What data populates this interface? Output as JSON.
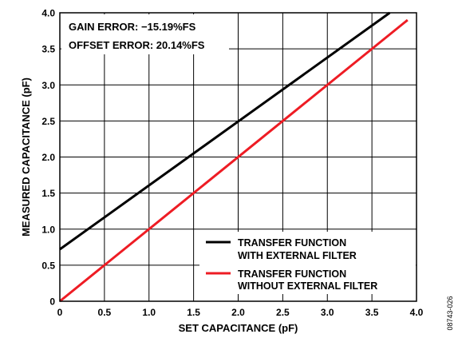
{
  "chart_data": {
    "type": "line",
    "xlabel": "SET CAPACITANCE (pF)",
    "ylabel": "MEASURED CAPACITANCE (pF)",
    "xlim": [
      0,
      4.0
    ],
    "ylim": [
      0,
      4.0
    ],
    "x_ticks": [
      "0",
      "0.5",
      "1.0",
      "1.5",
      "2.0",
      "2.5",
      "3.0",
      "3.5",
      "4.0"
    ],
    "y_ticks": [
      "0",
      "0.5",
      "1.0",
      "1.5",
      "2.0",
      "2.5",
      "3.0",
      "3.5",
      "4.0"
    ],
    "grid": true,
    "legend_position": "bottom-right",
    "annotations": [
      "GAIN ERROR: −15.19%FS",
      "OFFSET ERROR: 20.14%FS"
    ],
    "figure_id": "08743-026",
    "series": [
      {
        "name": "TRANSFER FUNCTION WITH EXTERNAL FILTER",
        "legend_lines": [
          "TRANSFER FUNCTION",
          "WITH EXTERNAL FILTER"
        ],
        "color": "#000000",
        "x": [
          0,
          3.7
        ],
        "y": [
          0.72,
          4.0
        ]
      },
      {
        "name": "TRANSFER FUNCTION WITHOUT EXTERNAL FILTER",
        "legend_lines": [
          "TRANSFER FUNCTION",
          "WITHOUT EXTERNAL FILTER"
        ],
        "color": "#ee1c24",
        "x": [
          0,
          3.9
        ],
        "y": [
          0,
          3.9
        ]
      }
    ]
  }
}
